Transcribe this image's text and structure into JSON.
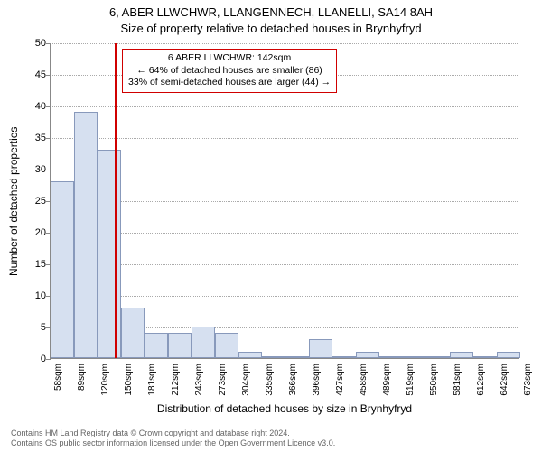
{
  "title_address": "6, ABER LLWCHWR, LLANGENNECH, LLANELLI, SA14 8AH",
  "title_sub": "Size of property relative to detached houses in Brynhyfryd",
  "y_label": "Number of detached properties",
  "x_label": "Distribution of detached houses by size in Brynhyfryd",
  "chart": {
    "type": "histogram",
    "ylim": [
      0,
      50
    ],
    "ytick_step": 5,
    "x_ticks": [
      "58sqm",
      "89sqm",
      "120sqm",
      "150sqm",
      "181sqm",
      "212sqm",
      "243sqm",
      "273sqm",
      "304sqm",
      "335sqm",
      "366sqm",
      "396sqm",
      "427sqm",
      "458sqm",
      "489sqm",
      "519sqm",
      "550sqm",
      "581sqm",
      "612sqm",
      "642sqm",
      "673sqm"
    ],
    "values": [
      28,
      39,
      33,
      8,
      4,
      4,
      5,
      4,
      1,
      0,
      0,
      3,
      0,
      1,
      0,
      0,
      0,
      1,
      0,
      1
    ],
    "bar_color": "#d6e0f0",
    "bar_border": "#8899bb",
    "grid_color": "#aaaaaa",
    "axis_color": "#888888",
    "background": "#ffffff"
  },
  "marker": {
    "x_position_sqm": 142,
    "color": "#d00000"
  },
  "annotation": {
    "line1": "6 ABER LLWCHWR: 142sqm",
    "line2": "← 64% of detached houses are smaller (86)",
    "line3": "33% of semi-detached houses are larger (44) →"
  },
  "footer": {
    "line1": "Contains HM Land Registry data © Crown copyright and database right 2024.",
    "line2": "Contains OS public sector information licensed under the Open Government Licence v3.0."
  }
}
